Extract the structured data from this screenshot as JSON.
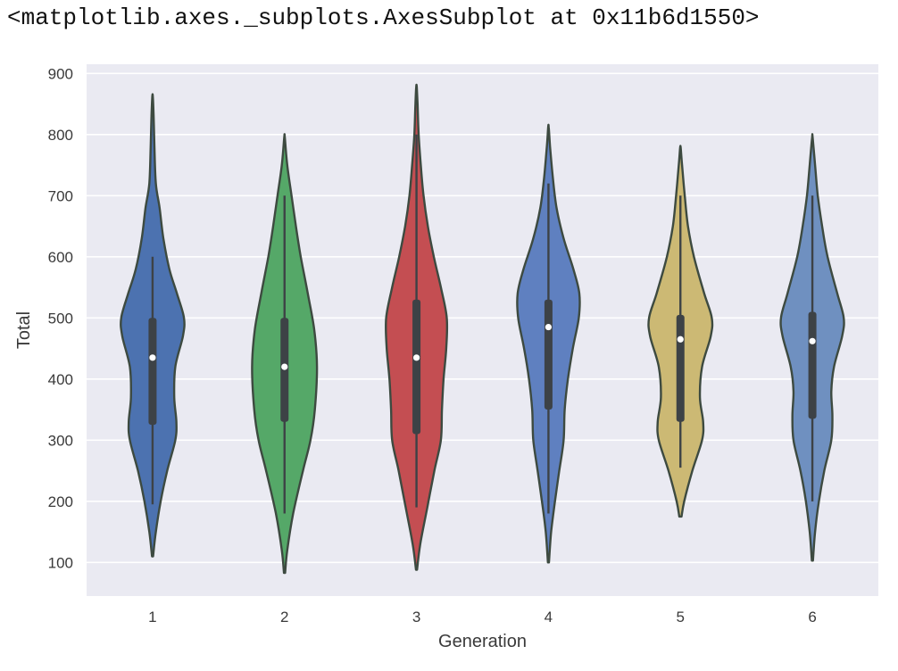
{
  "output_repr": "<matplotlib.axes._subplots.AxesSubplot at 0x11b6d1550>",
  "chart_data": {
    "type": "violin",
    "xlabel": "Generation",
    "ylabel": "Total",
    "ylim": [
      45,
      915
    ],
    "yticks": [
      100,
      200,
      300,
      400,
      500,
      600,
      700,
      800,
      900
    ],
    "grid": true,
    "background_color": "#eaeaf2",
    "categories": [
      "1",
      "2",
      "3",
      "4",
      "5",
      "6"
    ],
    "colors": [
      "#4c72b0",
      "#55a868",
      "#c44e52",
      "#5f80c0",
      "#ccb974",
      "#6f90c0"
    ],
    "violins": [
      {
        "category": "1",
        "min": 110,
        "max": 862,
        "q1": 325,
        "median": 435,
        "q3": 500,
        "whisker_low": 195,
        "whisker_high": 600,
        "profile": [
          [
            110,
            0.01
          ],
          [
            150,
            0.06
          ],
          [
            200,
            0.15
          ],
          [
            250,
            0.27
          ],
          [
            300,
            0.42
          ],
          [
            330,
            0.44
          ],
          [
            370,
            0.4
          ],
          [
            420,
            0.42
          ],
          [
            470,
            0.56
          ],
          [
            500,
            0.58
          ],
          [
            540,
            0.45
          ],
          [
            580,
            0.31
          ],
          [
            630,
            0.2
          ],
          [
            680,
            0.13
          ],
          [
            720,
            0.06
          ],
          [
            780,
            0.035
          ],
          [
            830,
            0.02
          ],
          [
            862,
            0.005
          ]
        ]
      },
      {
        "category": "2",
        "min": 83,
        "max": 795,
        "q1": 330,
        "median": 420,
        "q3": 500,
        "whisker_low": 180,
        "whisker_high": 700,
        "profile": [
          [
            83,
            0.01
          ],
          [
            120,
            0.05
          ],
          [
            180,
            0.16
          ],
          [
            250,
            0.34
          ],
          [
            300,
            0.48
          ],
          [
            350,
            0.56
          ],
          [
            420,
            0.6
          ],
          [
            480,
            0.55
          ],
          [
            540,
            0.43
          ],
          [
            600,
            0.3
          ],
          [
            650,
            0.21
          ],
          [
            700,
            0.13
          ],
          [
            750,
            0.05
          ],
          [
            795,
            0.005
          ]
        ]
      },
      {
        "category": "3",
        "min": 88,
        "max": 878,
        "q1": 310,
        "median": 435,
        "q3": 530,
        "whisker_low": 190,
        "whisker_high": 800,
        "profile": [
          [
            88,
            0.01
          ],
          [
            130,
            0.07
          ],
          [
            190,
            0.2
          ],
          [
            250,
            0.33
          ],
          [
            300,
            0.45
          ],
          [
            350,
            0.47
          ],
          [
            400,
            0.5
          ],
          [
            450,
            0.55
          ],
          [
            500,
            0.56
          ],
          [
            550,
            0.45
          ],
          [
            600,
            0.32
          ],
          [
            650,
            0.21
          ],
          [
            700,
            0.13
          ],
          [
            750,
            0.08
          ],
          [
            800,
            0.04
          ],
          [
            850,
            0.02
          ],
          [
            878,
            0.005
          ]
        ]
      },
      {
        "category": "4",
        "min": 100,
        "max": 812,
        "q1": 350,
        "median": 485,
        "q3": 530,
        "whisker_low": 180,
        "whisker_high": 720,
        "profile": [
          [
            100,
            0.01
          ],
          [
            150,
            0.05
          ],
          [
            200,
            0.12
          ],
          [
            250,
            0.2
          ],
          [
            300,
            0.28
          ],
          [
            350,
            0.3
          ],
          [
            400,
            0.36
          ],
          [
            450,
            0.45
          ],
          [
            500,
            0.56
          ],
          [
            540,
            0.57
          ],
          [
            580,
            0.46
          ],
          [
            630,
            0.28
          ],
          [
            680,
            0.15
          ],
          [
            730,
            0.08
          ],
          [
            780,
            0.03
          ],
          [
            812,
            0.005
          ]
        ]
      },
      {
        "category": "5",
        "min": 175,
        "max": 778,
        "q1": 330,
        "median": 465,
        "q3": 505,
        "whisker_low": 255,
        "whisker_high": 700,
        "profile": [
          [
            175,
            0.02
          ],
          [
            200,
            0.07
          ],
          [
            250,
            0.22
          ],
          [
            300,
            0.4
          ],
          [
            330,
            0.42
          ],
          [
            370,
            0.36
          ],
          [
            420,
            0.4
          ],
          [
            470,
            0.56
          ],
          [
            500,
            0.58
          ],
          [
            540,
            0.44
          ],
          [
            600,
            0.25
          ],
          [
            650,
            0.14
          ],
          [
            700,
            0.08
          ],
          [
            750,
            0.03
          ],
          [
            778,
            0.005
          ]
        ]
      },
      {
        "category": "6",
        "min": 103,
        "max": 795,
        "q1": 335,
        "median": 462,
        "q3": 510,
        "whisker_low": 200,
        "whisker_high": 700,
        "profile": [
          [
            103,
            0.01
          ],
          [
            150,
            0.05
          ],
          [
            200,
            0.12
          ],
          [
            250,
            0.22
          ],
          [
            300,
            0.35
          ],
          [
            340,
            0.37
          ],
          [
            380,
            0.35
          ],
          [
            420,
            0.4
          ],
          [
            470,
            0.55
          ],
          [
            500,
            0.58
          ],
          [
            540,
            0.46
          ],
          [
            600,
            0.28
          ],
          [
            650,
            0.18
          ],
          [
            700,
            0.1
          ],
          [
            750,
            0.05
          ],
          [
            795,
            0.005
          ]
        ]
      }
    ]
  }
}
